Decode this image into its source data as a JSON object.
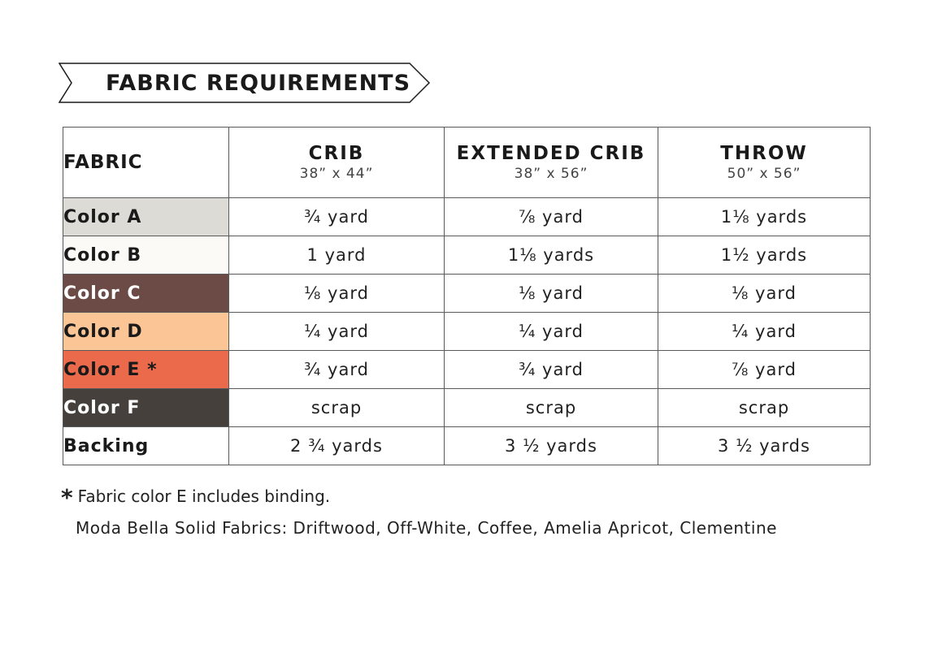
{
  "banner": {
    "title": "FABRIC REQUIREMENTS"
  },
  "table": {
    "header": {
      "fabric": "FABRIC",
      "sizes": [
        {
          "name": "CRIB",
          "dimensions": "38” x 44”"
        },
        {
          "name": "EXTENDED CRIB",
          "dimensions": "38” x 56”"
        },
        {
          "name": "THROW",
          "dimensions": "50” x 56”"
        }
      ]
    },
    "rows": [
      {
        "label": "Color A",
        "swatch": "#dddbd6",
        "text_color": "#1a1a1a",
        "crib": "¾ yard",
        "extended_crib": "⅞ yard",
        "throw": "1⅛ yards"
      },
      {
        "label": "Color B",
        "swatch": "#fbfaf6",
        "text_color": "#1a1a1a",
        "crib": "1 yard",
        "extended_crib": "1⅛ yards",
        "throw": "1½ yards"
      },
      {
        "label": "Color C",
        "swatch": "#6c4a45",
        "text_color": "#ffffff",
        "crib": "⅛ yard",
        "extended_crib": "⅛ yard",
        "throw": "⅛ yard"
      },
      {
        "label": "Color D",
        "swatch": "#fbc596",
        "text_color": "#1a1a1a",
        "crib": "¼ yard",
        "extended_crib": "¼ yard",
        "throw": "¼ yard"
      },
      {
        "label": "Color E *",
        "swatch": "#ec6a4c",
        "text_color": "#1a1a1a",
        "crib": "¾ yard",
        "extended_crib": "¾ yard",
        "throw": "⅞ yard"
      },
      {
        "label": "Color F",
        "swatch": "#45403b",
        "text_color": "#ffffff",
        "crib": "scrap",
        "extended_crib": "scrap",
        "throw": "scrap"
      },
      {
        "label": "Backing",
        "swatch": "#ffffff",
        "text_color": "#1a1a1a",
        "crib": "2 ¾ yards",
        "extended_crib": "3 ½ yards",
        "throw": "3 ½ yards"
      }
    ]
  },
  "footnote": {
    "marker": "*",
    "text": "Fabric color E includes binding."
  },
  "fabrics_note": "Moda Bella Solid Fabrics: Driftwood, Off-White, Coffee, Amelia Apricot, Clementine"
}
